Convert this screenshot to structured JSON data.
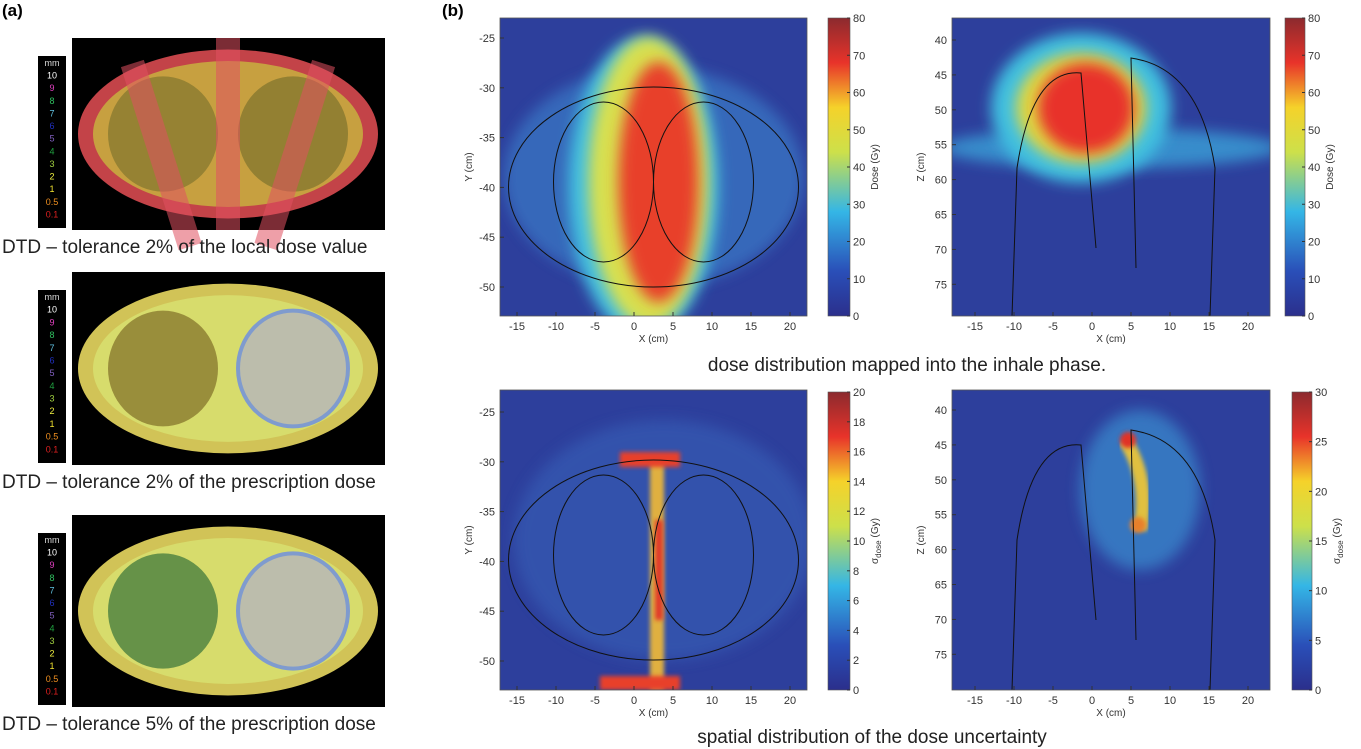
{
  "panel_a": {
    "label": "(a)",
    "maps": [
      {
        "legend": [
          "mm",
          "10",
          "9",
          "8",
          "7",
          "6",
          "5",
          "4",
          "3",
          "2",
          "1",
          "0.5",
          "0.1"
        ],
        "caption": "DTD – tolerance 2% of the local dose value"
      },
      {
        "legend": [
          "mm",
          "10",
          "9",
          "8",
          "7",
          "6",
          "5",
          "4",
          "3",
          "2",
          "1",
          "0.5",
          "0.1"
        ],
        "caption": "DTD – tolerance 2% of the prescription dose"
      },
      {
        "legend": [
          "mm",
          "10",
          "9",
          "8",
          "7",
          "6",
          "5",
          "4",
          "3",
          "2",
          "1",
          "0.5",
          "0.1"
        ],
        "caption": "DTD – tolerance 5% of the prescription dose"
      }
    ]
  },
  "panel_b": {
    "label": "(b)",
    "plots": [
      {
        "xticks": [
          -15,
          -10,
          -5,
          0,
          5,
          10,
          15,
          20
        ],
        "yticks": [
          -25,
          -30,
          -35,
          -40,
          -45,
          -50
        ],
        "xlabel": "X (cm)",
        "ylabel": "Y (cm)",
        "colorbar_ticks": [
          0,
          10,
          20,
          30,
          40,
          50,
          60,
          70,
          80
        ],
        "colorbar_label": "Dose (Gy)"
      },
      {
        "xticks": [
          -15,
          -10,
          -5,
          0,
          5,
          10,
          15,
          20
        ],
        "yticks": [
          40,
          45,
          50,
          55,
          60,
          65,
          70,
          75
        ],
        "xlabel": "X (cm)",
        "ylabel": "Z (cm)",
        "colorbar_ticks": [
          0,
          10,
          20,
          30,
          40,
          50,
          60,
          70,
          80
        ],
        "colorbar_label": "Dose (Gy)"
      },
      {
        "xticks": [
          -15,
          -10,
          -5,
          0,
          5,
          10,
          15,
          20
        ],
        "yticks": [
          -25,
          -30,
          -35,
          -40,
          -45,
          -50
        ],
        "xlabel": "X (cm)",
        "ylabel": "Y (cm)",
        "colorbar_ticks": [
          0,
          2,
          4,
          6,
          8,
          10,
          12,
          14,
          16,
          18,
          20
        ],
        "colorbar_label": {
          "symbol": "σ",
          "subscript": "dose",
          "unit": "(Gy)"
        }
      },
      {
        "xticks": [
          -15,
          -10,
          -5,
          0,
          5,
          10,
          15,
          20
        ],
        "yticks": [
          40,
          45,
          50,
          55,
          60,
          65,
          70,
          75
        ],
        "xlabel": "X (cm)",
        "ylabel": "Z (cm)",
        "colorbar_ticks": [
          0,
          5,
          10,
          15,
          20,
          25,
          30
        ],
        "colorbar_label": {
          "symbol": "σ",
          "subscript": "dose",
          "unit": "(Gy)"
        }
      }
    ],
    "captions": [
      "dose distribution mapped into the inhale phase.",
      "spatial distribution of the dose uncertainty"
    ]
  }
}
